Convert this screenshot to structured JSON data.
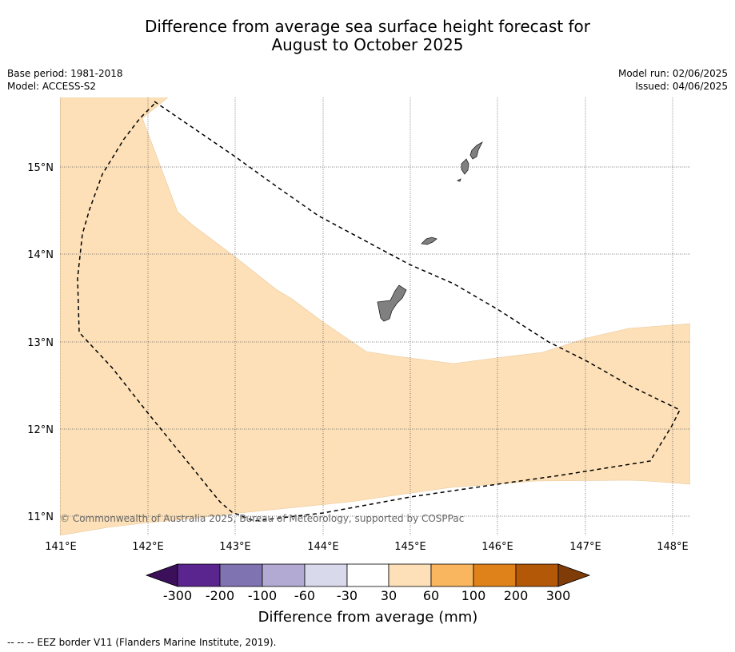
{
  "title_line1": "Difference from average sea surface height forecast for",
  "title_line2": "August to October 2025",
  "meta_left": {
    "base_period": "Base period: 1981-2018",
    "model": "Model: ACCESS-S2"
  },
  "meta_right": {
    "model_run": "Model run: 02/06/2025",
    "issued": "Issued: 04/06/2025"
  },
  "map": {
    "lon_labels": [
      "141°E",
      "142°E",
      "143°E",
      "144°E",
      "145°E",
      "146°E",
      "147°E",
      "148°E"
    ],
    "lat_labels": [
      "15°N",
      "14°N",
      "13°N",
      "12°N",
      "11°N"
    ],
    "copyright": "© Commonwealth of Australia 2025, Bureau of Meteorology, supported by COSPPac",
    "anomaly_region_color": "#fde0b7",
    "land_color": "#808080"
  },
  "colorbar": {
    "label": "Difference from average (mm)",
    "ticks": [
      "-300",
      "-200",
      "-100",
      "-60",
      "-30",
      "30",
      "60",
      "100",
      "200",
      "300"
    ],
    "colors": [
      "#3b0f5a",
      "#5b2590",
      "#8073b1",
      "#b2aad3",
      "#d9d9ec",
      "#ffffff",
      "#fde0b7",
      "#f9b65e",
      "#e0821a",
      "#b35806",
      "#7f3b08"
    ]
  },
  "footnote": "--  --  -- EEZ border V11 (Flanders Marine Institute, 2019)."
}
